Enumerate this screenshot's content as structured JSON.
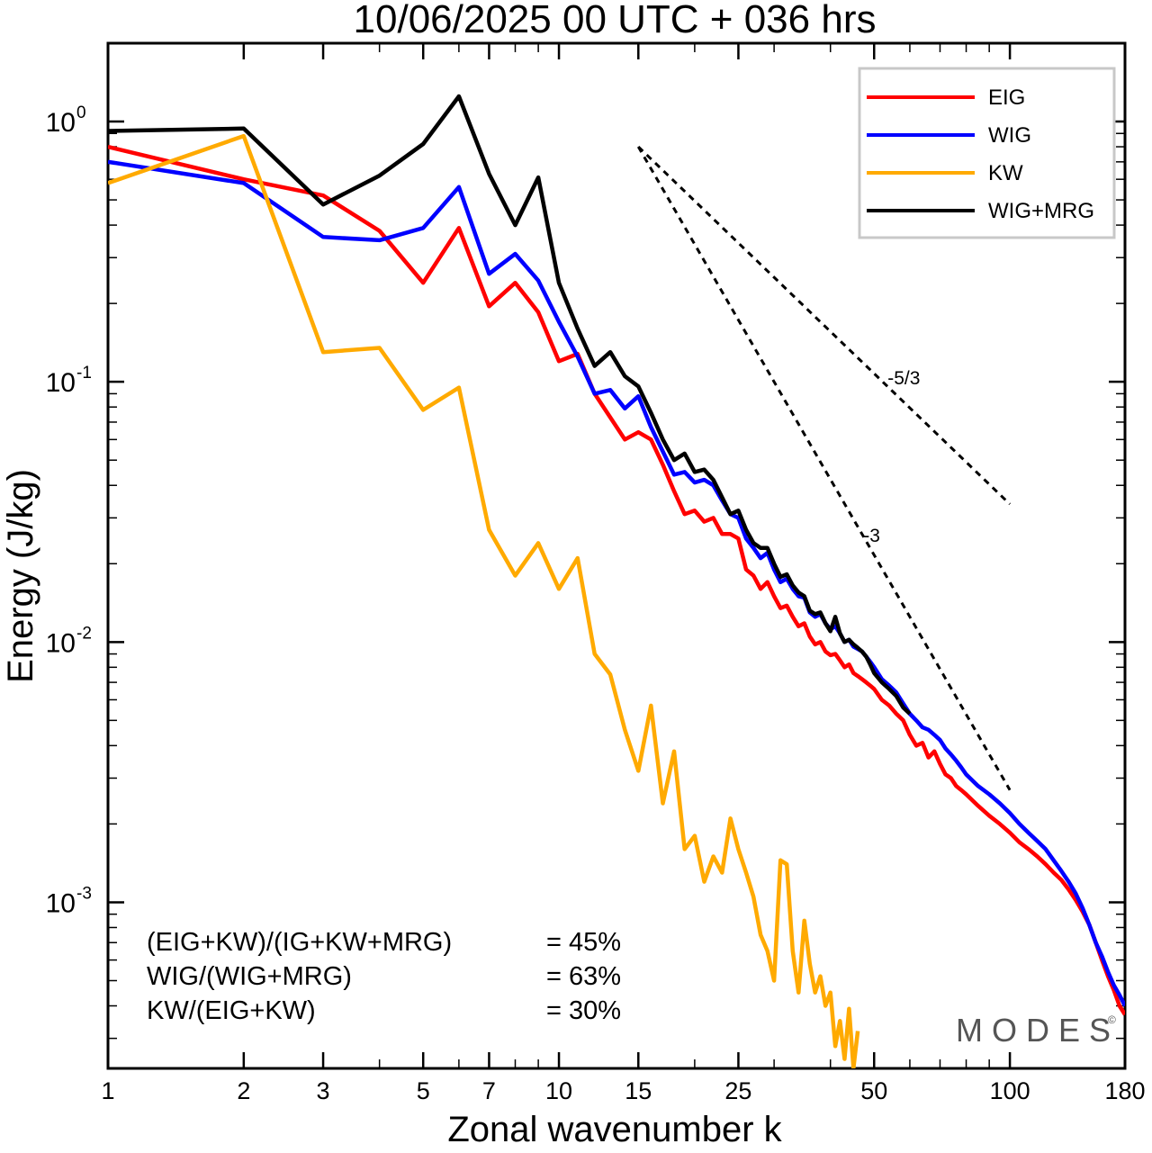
{
  "title": "10/06/2025  00 UTC  + 036 hrs",
  "watermark": {
    "text": "MODES",
    "mark": "©"
  },
  "colors": {
    "EIG": "#ff0000",
    "WIG": "#0000ff",
    "KW": "#ffaa00",
    "WIG+MRG": "#000000"
  },
  "annotations": [
    {
      "label": "(EIG+KW)/(IG+KW+MRG)",
      "value": "= 45%"
    },
    {
      "label": "WIG/(WIG+MRG)",
      "value": "= 63%"
    },
    {
      "label": "KW/(EIG+KW)",
      "value": "= 30%"
    }
  ],
  "chart_data": {
    "type": "line",
    "title": "10/06/2025  00 UTC  + 036 hrs",
    "xlabel": "Zonal wavenumber k",
    "ylabel": "Energy (J/kg)",
    "xscale": "log",
    "yscale": "log",
    "xlim": [
      1,
      180
    ],
    "ylim": [
      0.00023,
      2.0
    ],
    "xticks": [
      1,
      2,
      3,
      5,
      7,
      10,
      15,
      25,
      50,
      100,
      180
    ],
    "yticks": [
      {
        "value": 1,
        "base": "10",
        "exp": "0"
      },
      {
        "value": 0.1,
        "base": "10",
        "exp": "-1"
      },
      {
        "value": 0.01,
        "base": "10",
        "exp": "-2"
      },
      {
        "value": 0.001,
        "base": "10",
        "exp": "-3"
      }
    ],
    "grid": false,
    "legend_position": "top-right",
    "reference_lines": [
      {
        "label": "-5/3",
        "slope": -1.6667,
        "x_start": 15,
        "y_start": 0.8,
        "x_end": 100
      },
      {
        "label": "-3",
        "slope": -3,
        "x_start": 15,
        "y_start": 0.8,
        "x_end": 100
      }
    ],
    "series": [
      {
        "name": "EIG",
        "x": [
          1,
          2,
          3,
          4,
          5,
          6,
          7,
          8,
          9,
          10,
          11,
          12,
          13,
          14,
          15,
          16,
          17,
          18,
          19,
          20,
          21,
          22,
          23,
          24,
          25,
          26,
          27,
          28,
          29,
          30,
          31,
          32,
          33,
          34,
          35,
          36,
          37,
          38,
          39,
          40,
          41,
          42,
          43,
          44,
          45,
          46,
          47,
          48,
          49,
          50,
          52,
          54,
          56,
          58,
          60,
          62,
          64,
          66,
          68,
          70,
          72,
          74,
          76,
          78,
          80,
          85,
          90,
          95,
          100,
          105,
          110,
          115,
          120,
          125,
          130,
          135,
          140,
          145,
          150,
          155,
          160,
          165,
          170,
          175,
          180
        ],
        "y": [
          0.8,
          0.6,
          0.52,
          0.38,
          0.24,
          0.39,
          0.195,
          0.24,
          0.185,
          0.12,
          0.128,
          0.09,
          0.073,
          0.06,
          0.064,
          0.06,
          0.048,
          0.038,
          0.031,
          0.032,
          0.029,
          0.03,
          0.026,
          0.026,
          0.025,
          0.019,
          0.018,
          0.016,
          0.017,
          0.015,
          0.0135,
          0.0138,
          0.0125,
          0.0115,
          0.0118,
          0.0105,
          0.0098,
          0.01,
          0.0092,
          0.0089,
          0.009,
          0.0085,
          0.008,
          0.0082,
          0.0076,
          0.0074,
          0.0072,
          0.007,
          0.0068,
          0.0066,
          0.006,
          0.0057,
          0.0053,
          0.005,
          0.0044,
          0.004,
          0.0041,
          0.0036,
          0.0038,
          0.0034,
          0.0031,
          0.003,
          0.0028,
          0.0027,
          0.0026,
          0.00235,
          0.00215,
          0.002,
          0.00185,
          0.0017,
          0.0016,
          0.0015,
          0.0014,
          0.0013,
          0.00122,
          0.00112,
          0.00102,
          0.00092,
          0.00082,
          0.0007,
          0.0006,
          0.00052,
          0.00046,
          0.0004,
          0.00037
        ]
      },
      {
        "name": "WIG",
        "x": [
          1,
          2,
          3,
          4,
          5,
          6,
          7,
          8,
          9,
          10,
          11,
          12,
          13,
          14,
          15,
          16,
          17,
          18,
          19,
          20,
          21,
          22,
          23,
          24,
          25,
          26,
          27,
          28,
          29,
          30,
          31,
          32,
          33,
          34,
          35,
          36,
          37,
          38,
          39,
          40,
          41,
          42,
          43,
          44,
          45,
          46,
          47,
          48,
          49,
          50,
          52,
          54,
          56,
          58,
          60,
          62,
          64,
          66,
          68,
          70,
          72,
          74,
          76,
          78,
          80,
          85,
          90,
          95,
          100,
          105,
          110,
          115,
          120,
          125,
          130,
          135,
          140,
          145,
          150,
          155,
          160,
          165,
          170,
          175,
          180
        ],
        "y": [
          0.7,
          0.58,
          0.36,
          0.35,
          0.39,
          0.56,
          0.26,
          0.31,
          0.245,
          0.17,
          0.125,
          0.09,
          0.093,
          0.079,
          0.088,
          0.067,
          0.054,
          0.044,
          0.045,
          0.041,
          0.042,
          0.04,
          0.035,
          0.031,
          0.03,
          0.025,
          0.023,
          0.021,
          0.022,
          0.019,
          0.017,
          0.0175,
          0.016,
          0.015,
          0.0148,
          0.013,
          0.0125,
          0.0128,
          0.0118,
          0.0112,
          0.0115,
          0.0108,
          0.01,
          0.0102,
          0.0096,
          0.0094,
          0.0092,
          0.0088,
          0.0084,
          0.008,
          0.0072,
          0.0068,
          0.0064,
          0.0058,
          0.0053,
          0.005,
          0.0047,
          0.0046,
          0.0044,
          0.0042,
          0.0039,
          0.0037,
          0.0035,
          0.0033,
          0.0031,
          0.0028,
          0.0026,
          0.0024,
          0.0022,
          0.002,
          0.00185,
          0.00172,
          0.0016,
          0.00145,
          0.00132,
          0.0012,
          0.00108,
          0.00095,
          0.00082,
          0.0007,
          0.00062,
          0.00054,
          0.00048,
          0.00044,
          0.0004
        ]
      },
      {
        "name": "KW",
        "x": [
          1,
          2,
          3,
          4,
          5,
          6,
          7,
          8,
          9,
          10,
          11,
          12,
          13,
          14,
          15,
          16,
          17,
          18,
          19,
          20,
          21,
          22,
          23,
          24,
          25,
          26,
          27,
          28,
          29,
          30,
          31,
          32,
          33,
          34,
          35,
          36,
          37,
          38,
          39,
          40,
          41,
          42,
          43,
          44,
          45,
          46
        ],
        "y": [
          0.58,
          0.88,
          0.13,
          0.135,
          0.078,
          0.095,
          0.027,
          0.018,
          0.024,
          0.016,
          0.021,
          0.009,
          0.0075,
          0.0046,
          0.0032,
          0.0057,
          0.0024,
          0.0038,
          0.0016,
          0.0018,
          0.0012,
          0.0015,
          0.0013,
          0.0021,
          0.0016,
          0.0013,
          0.00105,
          0.00075,
          0.00065,
          0.0005,
          0.00145,
          0.0014,
          0.00065,
          0.00045,
          0.00085,
          0.00058,
          0.00045,
          0.00052,
          0.0004,
          0.00045,
          0.00028,
          0.00035,
          0.00025,
          0.00039,
          0.00023,
          0.00032
        ]
      },
      {
        "name": "WIG+MRG",
        "x": [
          1,
          2,
          3,
          4,
          5,
          6,
          7,
          8,
          9,
          10,
          11,
          12,
          13,
          14,
          15,
          16,
          17,
          18,
          19,
          20,
          21,
          22,
          23,
          24,
          25,
          26,
          27,
          28,
          29,
          30,
          31,
          32,
          33,
          34,
          35,
          36,
          37,
          38,
          39,
          40,
          41,
          42,
          43,
          44,
          45,
          46,
          47,
          48,
          49,
          50,
          52,
          54,
          56,
          58,
          60
        ],
        "y": [
          0.92,
          0.94,
          0.48,
          0.62,
          0.82,
          1.25,
          0.63,
          0.4,
          0.61,
          0.24,
          0.16,
          0.115,
          0.13,
          0.105,
          0.096,
          0.076,
          0.06,
          0.05,
          0.053,
          0.045,
          0.046,
          0.042,
          0.036,
          0.031,
          0.032,
          0.027,
          0.024,
          0.023,
          0.023,
          0.02,
          0.0178,
          0.0182,
          0.0165,
          0.0155,
          0.015,
          0.0132,
          0.0128,
          0.013,
          0.0118,
          0.011,
          0.0125,
          0.0108,
          0.01,
          0.0102,
          0.0098,
          0.0095,
          0.0092,
          0.0088,
          0.0082,
          0.0076,
          0.007,
          0.0066,
          0.0062,
          0.0056,
          0.0053
        ]
      }
    ]
  }
}
